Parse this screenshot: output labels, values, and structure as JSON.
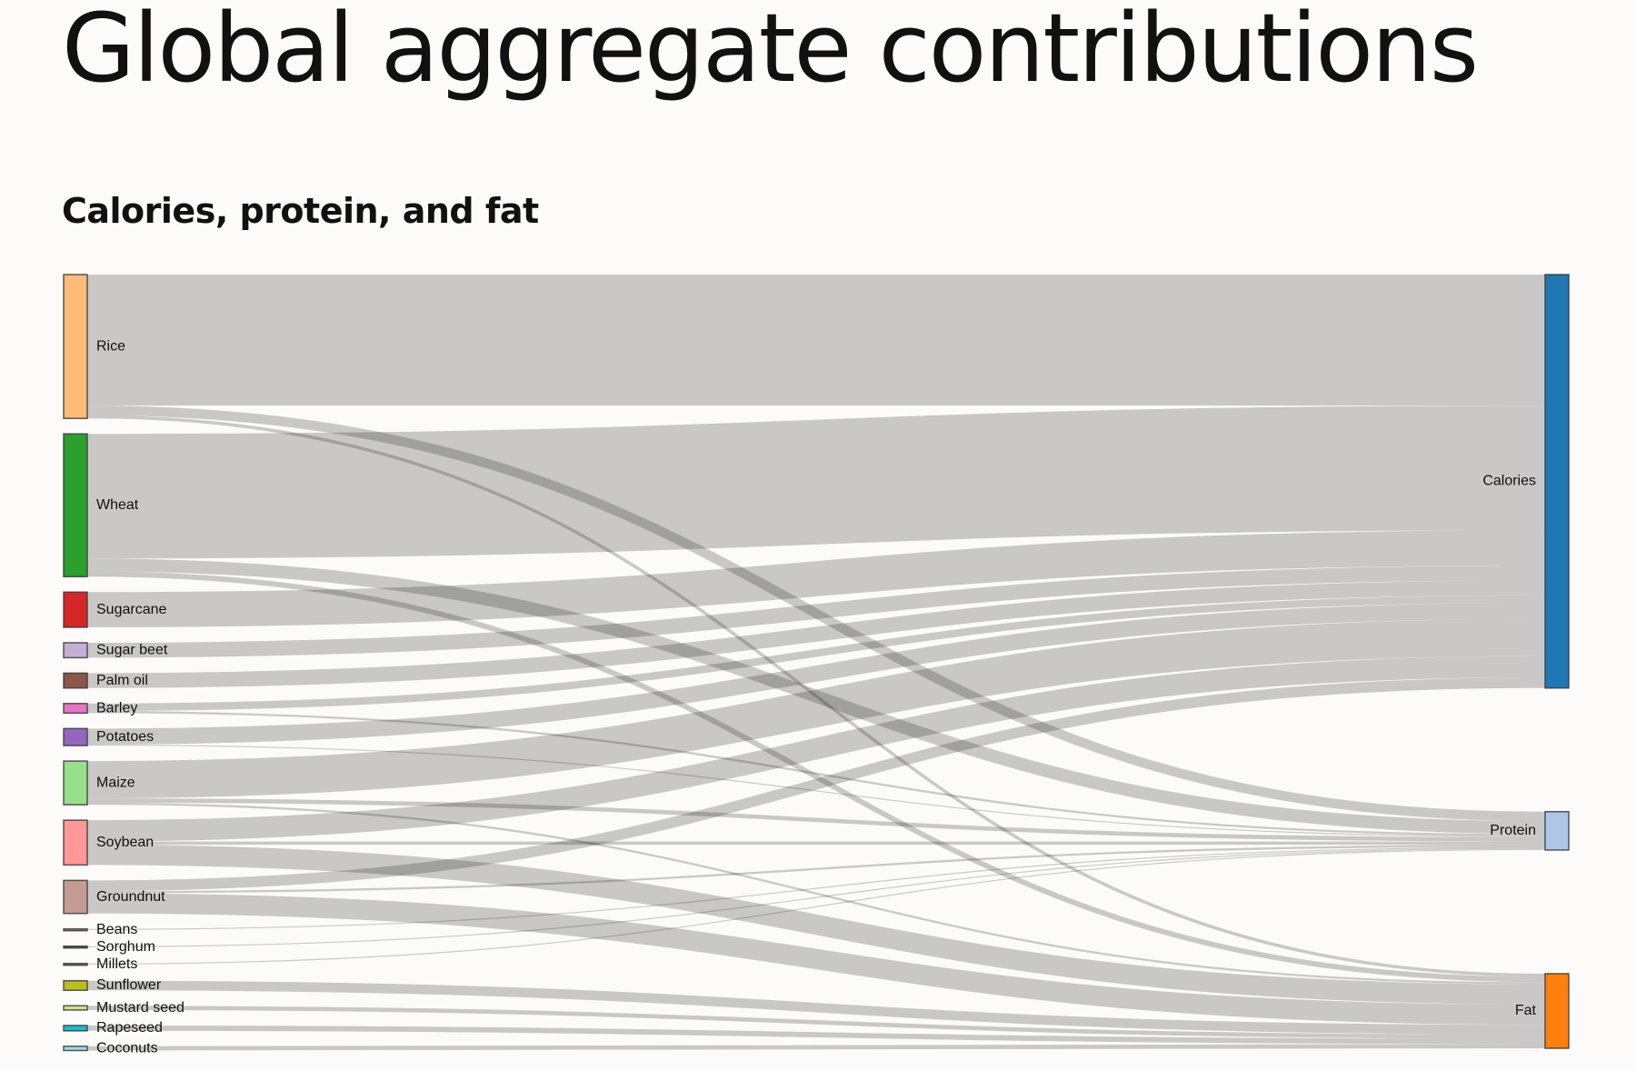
{
  "chart_data": {
    "type": "sankey",
    "title": "Global aggregate contributions",
    "subtitle": "Calories, protein, and fat",
    "nodes": [
      {
        "name": "Rice",
        "color": "#ffbb78",
        "side": "left"
      },
      {
        "name": "Wheat",
        "color": "#2ca02c",
        "side": "left"
      },
      {
        "name": "Sugarcane",
        "color": "#d62728",
        "side": "left"
      },
      {
        "name": "Sugar beet",
        "color": "#c5b0d5",
        "side": "left"
      },
      {
        "name": "Palm oil",
        "color": "#8c564b",
        "side": "left"
      },
      {
        "name": "Barley",
        "color": "#e377c2",
        "side": "left"
      },
      {
        "name": "Potatoes",
        "color": "#9467bd",
        "side": "left"
      },
      {
        "name": "Maize",
        "color": "#98df8a",
        "side": "left"
      },
      {
        "name": "Soybean",
        "color": "#ff9896",
        "side": "left"
      },
      {
        "name": "Groundnut",
        "color": "#c49c94",
        "side": "left"
      },
      {
        "name": "Beans",
        "color": "#b07d8c",
        "side": "left"
      },
      {
        "name": "Sorghum",
        "color": "#555555",
        "side": "left"
      },
      {
        "name": "Millets",
        "color": "#777777",
        "side": "left"
      },
      {
        "name": "Sunflower",
        "color": "#bcbd22",
        "side": "left"
      },
      {
        "name": "Mustard seed",
        "color": "#dbdb8d",
        "side": "left"
      },
      {
        "name": "Rapeseed",
        "color": "#17becf",
        "side": "left"
      },
      {
        "name": "Coconuts",
        "color": "#9edae5",
        "side": "left"
      },
      {
        "name": "Calories",
        "color": "#1f77b4",
        "side": "right"
      },
      {
        "name": "Protein",
        "color": "#aec7e8",
        "side": "right"
      },
      {
        "name": "Fat",
        "color": "#ff7f0e",
        "side": "right"
      }
    ],
    "links": [
      {
        "source": 0,
        "target": 17,
        "value": 123
      },
      {
        "source": 0,
        "target": 18,
        "value": 9
      },
      {
        "source": 0,
        "target": 19,
        "value": 3
      },
      {
        "source": 1,
        "target": 17,
        "value": 117
      },
      {
        "source": 1,
        "target": 18,
        "value": 12
      },
      {
        "source": 1,
        "target": 19,
        "value": 5
      },
      {
        "source": 2,
        "target": 17,
        "value": 33
      },
      {
        "source": 3,
        "target": 17,
        "value": 14
      },
      {
        "source": 4,
        "target": 17,
        "value": 14
      },
      {
        "source": 5,
        "target": 17,
        "value": 7
      },
      {
        "source": 5,
        "target": 18,
        "value": 2
      },
      {
        "source": 6,
        "target": 17,
        "value": 15
      },
      {
        "source": 6,
        "target": 18,
        "value": 1
      },
      {
        "source": 7,
        "target": 17,
        "value": 35
      },
      {
        "source": 7,
        "target": 18,
        "value": 4
      },
      {
        "source": 7,
        "target": 19,
        "value": 2
      },
      {
        "source": 8,
        "target": 17,
        "value": 20
      },
      {
        "source": 8,
        "target": 18,
        "value": 3
      },
      {
        "source": 8,
        "target": 19,
        "value": 19
      },
      {
        "source": 9,
        "target": 17,
        "value": 10
      },
      {
        "source": 9,
        "target": 18,
        "value": 2
      },
      {
        "source": 9,
        "target": 19,
        "value": 19
      },
      {
        "source": 10,
        "target": 18,
        "value": 1
      },
      {
        "source": 11,
        "target": 18,
        "value": 1
      },
      {
        "source": 12,
        "target": 18,
        "value": 1
      },
      {
        "source": 13,
        "target": 19,
        "value": 9
      },
      {
        "source": 14,
        "target": 19,
        "value": 4
      },
      {
        "source": 15,
        "target": 19,
        "value": 5
      },
      {
        "source": 16,
        "target": 19,
        "value": 4
      }
    ]
  }
}
